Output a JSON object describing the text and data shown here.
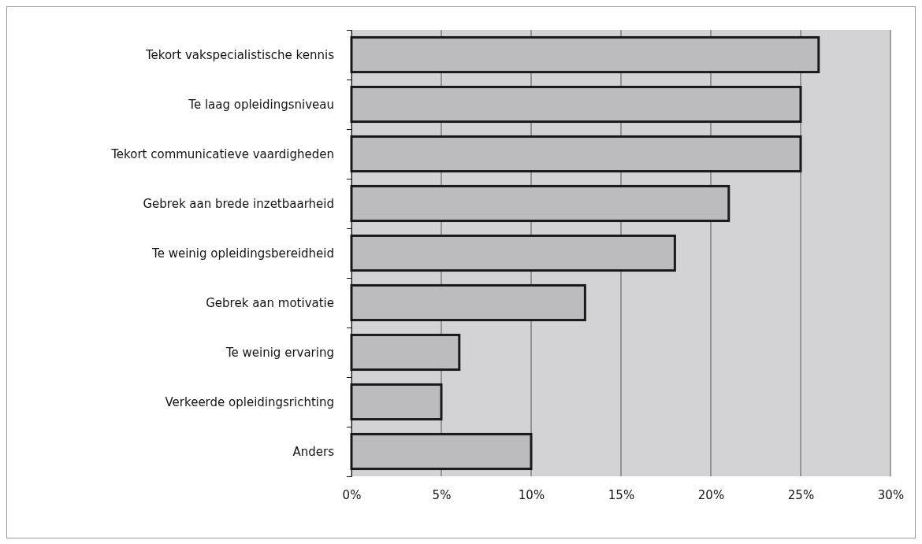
{
  "chart_data": {
    "type": "bar",
    "orientation": "horizontal",
    "categories": [
      "Tekort vakspecialistische kennis",
      "Te laag opleidingsniveau",
      "Tekort communicatieve vaardigheden",
      "Gebrek aan brede inzetbaarheid",
      "Te weinig opleidingsbereidheid",
      "Gebrek aan motivatie",
      "Te weinig ervaring",
      "Verkeerde opleidingsrichting",
      "Anders"
    ],
    "values": [
      26,
      25,
      25,
      21,
      18,
      13,
      6,
      5,
      10
    ],
    "color": "#bcbcbe",
    "xlim": [
      0,
      30
    ],
    "xticks": [
      {
        "value": 0,
        "label": "0%"
      },
      {
        "value": 5,
        "label": "5%"
      },
      {
        "value": 10,
        "label": "10%"
      },
      {
        "value": 15,
        "label": "15%"
      },
      {
        "value": 20,
        "label": "20%"
      },
      {
        "value": 25,
        "label": "25%"
      },
      {
        "value": 30,
        "label": "30%"
      }
    ],
    "grid": "x"
  }
}
